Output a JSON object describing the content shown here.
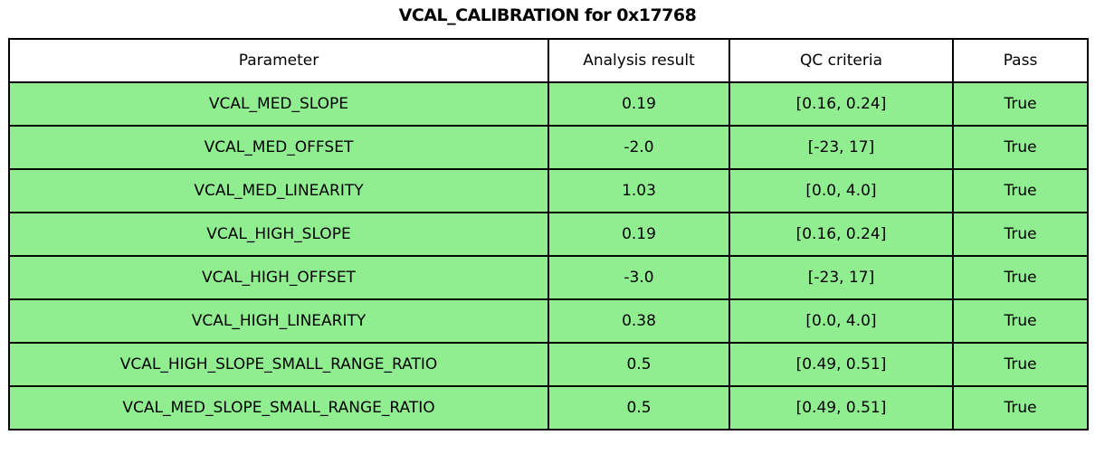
{
  "title": "VCAL_CALIBRATION for 0x17768",
  "colors": {
    "row_bg": "#90EE90",
    "header_bg": "#FFFFFF",
    "border": "#000000",
    "text": "#000000"
  },
  "chart_data": {
    "type": "table",
    "title": "VCAL_CALIBRATION for 0x17768",
    "columns": [
      "Parameter",
      "Analysis result",
      "QC criteria",
      "Pass"
    ],
    "rows": [
      [
        "VCAL_MED_SLOPE",
        "0.19",
        "[0.16, 0.24]",
        "True"
      ],
      [
        "VCAL_MED_OFFSET",
        "-2.0",
        "[-23, 17]",
        "True"
      ],
      [
        "VCAL_MED_LINEARITY",
        "1.03",
        "[0.0, 4.0]",
        "True"
      ],
      [
        "VCAL_HIGH_SLOPE",
        "0.19",
        "[0.16, 0.24]",
        "True"
      ],
      [
        "VCAL_HIGH_OFFSET",
        "-3.0",
        "[-23, 17]",
        "True"
      ],
      [
        "VCAL_HIGH_LINEARITY",
        "0.38",
        "[0.0, 4.0]",
        "True"
      ],
      [
        "VCAL_HIGH_SLOPE_SMALL_RANGE_RATIO",
        "0.5",
        "[0.49, 0.51]",
        "True"
      ],
      [
        "VCAL_MED_SLOPE_SMALL_RANGE_RATIO",
        "0.5",
        "[0.49, 0.51]",
        "True"
      ]
    ],
    "layout": {
      "header_row": true,
      "row_fill": "#90EE90",
      "header_fill": "#FFFFFF",
      "grid": true
    }
  }
}
